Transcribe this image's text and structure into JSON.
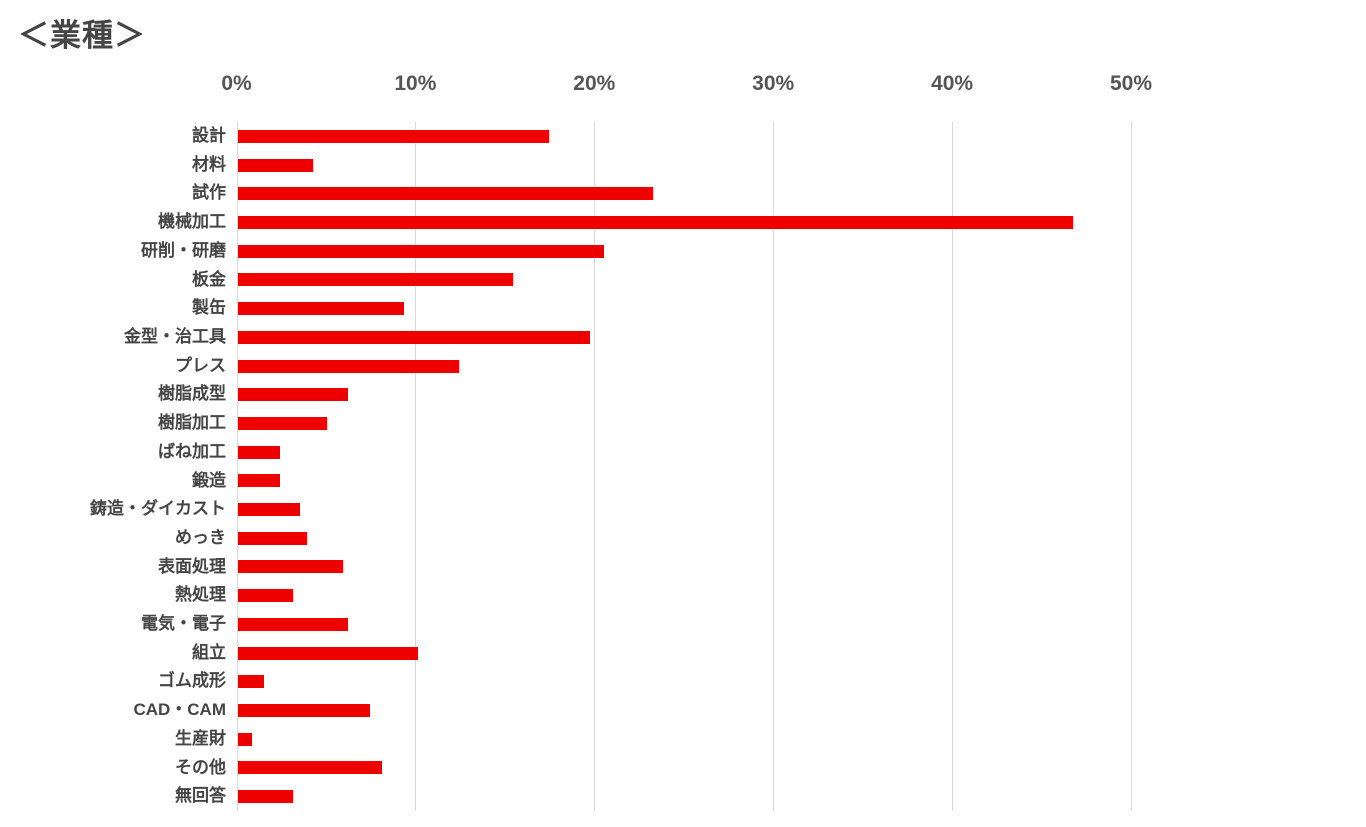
{
  "chart_title": "＜業種＞",
  "chart_data": {
    "type": "bar",
    "orientation": "horizontal",
    "title": "＜業種＞",
    "categories": [
      "設計",
      "材料",
      "試作",
      "機械加工",
      "研削・研磨",
      "板金",
      "製缶",
      "金型・治工具",
      "プレス",
      "樹脂成型",
      "樹脂加工",
      "ばね加工",
      "鍛造",
      "鋳造・ダイカスト",
      "めっき",
      "表面処理",
      "熱処理",
      "電気・電子",
      "組立",
      "ゴム成形",
      "CAD・CAM",
      "生産財",
      "その他",
      "無回答"
    ],
    "values": [
      17.4,
      4.2,
      23.2,
      46.7,
      20.5,
      15.4,
      9.3,
      19.7,
      12.4,
      6.2,
      5.0,
      2.4,
      2.4,
      3.5,
      3.9,
      5.9,
      3.1,
      6.2,
      10.1,
      1.5,
      7.4,
      0.8,
      8.1,
      3.1
    ],
    "unit": "%",
    "xlabel": "",
    "ylabel": "",
    "xlim": [
      0,
      50
    ],
    "x_ticks": [
      "0%",
      "10%",
      "20%",
      "30%",
      "40%",
      "50%"
    ],
    "x_tick_values": [
      0,
      10,
      20,
      30,
      40,
      50
    ],
    "grid": "vertical-major",
    "legend": "none",
    "colors": {
      "bar": "#ee0000",
      "gridline": "#d9d9d9",
      "axis_line": "#d9d9d9",
      "tick_label": "#555555",
      "category_label": "#454545",
      "title": "#454545",
      "background": "#ffffff"
    }
  }
}
